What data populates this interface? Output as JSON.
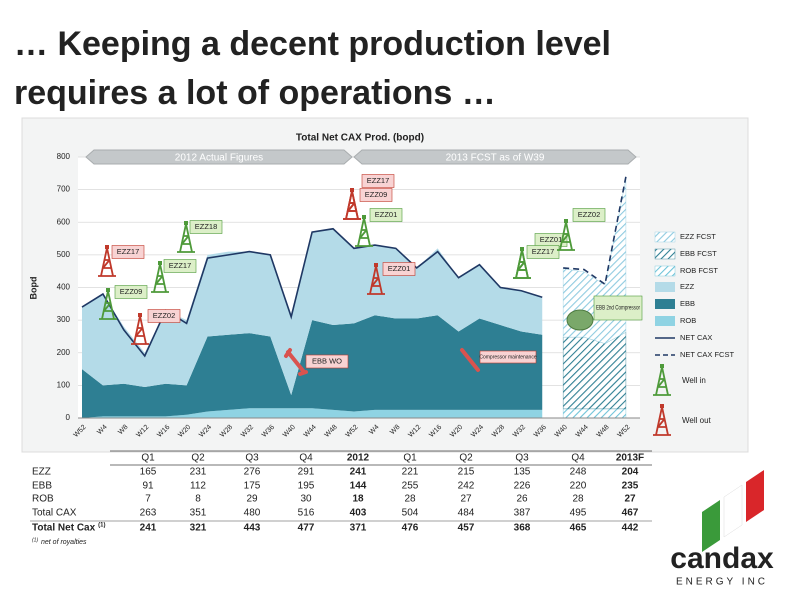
{
  "title_lines": [
    "… Keeping a decent production level",
    "requires a lot of operations …"
  ],
  "chart_data": {
    "type": "area",
    "title": "Total Net CAX Prod. (bopd)",
    "y_label": "Bopd",
    "periods": [
      "2012 Actual Figures",
      "2013 FCST as of W39"
    ],
    "categories": [
      "W52",
      "W4",
      "W8",
      "W12",
      "W16",
      "W20",
      "W24",
      "W28",
      "W32",
      "W36",
      "W40",
      "W44",
      "W48",
      "W52",
      "W4",
      "W8",
      "W12",
      "W16",
      "W20",
      "W24",
      "W28",
      "W32",
      "W36",
      "W40",
      "W44",
      "W48",
      "W52"
    ],
    "ylim": [
      0,
      800
    ],
    "yticks": [
      0,
      100,
      200,
      300,
      400,
      500,
      600,
      700,
      800
    ],
    "grid": true,
    "series": [
      {
        "name": "EZZ FCST",
        "color": "#8fcbe0",
        "style": "hatched-area",
        "values": [
          null,
          null,
          null,
          null,
          null,
          null,
          null,
          null,
          null,
          null,
          null,
          null,
          null,
          null,
          null,
          null,
          null,
          null,
          null,
          null,
          null,
          null,
          null,
          210,
          200,
          180,
          470
        ]
      },
      {
        "name": "EBB FCST",
        "color": "#2e7f93",
        "style": "hatched-area",
        "values": [
          null,
          null,
          null,
          null,
          null,
          null,
          null,
          null,
          null,
          null,
          null,
          null,
          null,
          null,
          null,
          null,
          null,
          null,
          null,
          null,
          null,
          null,
          null,
          220,
          220,
          200,
          235
        ]
      },
      {
        "name": "ROB FCST",
        "color": "#6fc3d8",
        "style": "hatched-area",
        "values": [
          null,
          null,
          null,
          null,
          null,
          null,
          null,
          null,
          null,
          null,
          null,
          null,
          null,
          null,
          null,
          null,
          null,
          null,
          null,
          null,
          null,
          null,
          null,
          28,
          28,
          28,
          28
        ]
      },
      {
        "name": "EZZ",
        "color": "#b4dbe8",
        "style": "area",
        "values": [
          190,
          280,
          175,
          105,
          225,
          200,
          250,
          255,
          250,
          250,
          250,
          270,
          295,
          230,
          215,
          215,
          155,
          205,
          165,
          165,
          115,
          125,
          115,
          null,
          null,
          null,
          null
        ]
      },
      {
        "name": "EBB",
        "color": "#2e7f93",
        "style": "area",
        "values": [
          150,
          95,
          100,
          90,
          100,
          90,
          230,
          230,
          230,
          220,
          40,
          270,
          260,
          270,
          290,
          280,
          280,
          290,
          240,
          280,
          260,
          240,
          230,
          null,
          null,
          null,
          null
        ]
      },
      {
        "name": "ROB",
        "color": "#8fd3e3",
        "style": "area",
        "values": [
          0,
          5,
          5,
          5,
          5,
          10,
          20,
          25,
          30,
          30,
          30,
          30,
          25,
          20,
          25,
          25,
          25,
          25,
          25,
          25,
          25,
          25,
          25,
          null,
          null,
          null,
          null
        ]
      },
      {
        "name": "NET CAX",
        "color": "#1f3864",
        "style": "line",
        "values": [
          340,
          380,
          270,
          190,
          330,
          290,
          490,
          500,
          510,
          500,
          310,
          570,
          580,
          520,
          530,
          520,
          460,
          510,
          430,
          470,
          400,
          390,
          370,
          null,
          null,
          null,
          null
        ]
      },
      {
        "name": "NET CAX FCST",
        "color": "#1f3864",
        "style": "dashed-line",
        "values": [
          null,
          null,
          null,
          null,
          null,
          null,
          null,
          null,
          null,
          null,
          null,
          null,
          null,
          null,
          null,
          null,
          null,
          null,
          null,
          null,
          null,
          null,
          null,
          460,
          455,
          410,
          740
        ]
      }
    ],
    "wells": [
      {
        "label": "EZZ17",
        "status": "out"
      },
      {
        "label": "EZZ09",
        "status": "in"
      },
      {
        "label": "EZZ02",
        "status": "out"
      },
      {
        "label": "EZZ17",
        "status": "in"
      },
      {
        "label": "EZZ18",
        "status": "in"
      },
      {
        "label": "EZZ17",
        "status": "out"
      },
      {
        "label": "EZZ09",
        "status": "out"
      },
      {
        "label": "EZZ01",
        "status": "in"
      },
      {
        "label": "EZZ01",
        "status": "out"
      },
      {
        "label": "EZZ01",
        "status": "in"
      },
      {
        "label": "EZZ17",
        "status": "in"
      },
      {
        "label": "EZZ02",
        "status": "in"
      }
    ],
    "callouts": [
      "EBB WO",
      "Compressor maintenance",
      "EBB 2nd Compressor"
    ],
    "well_legend": [
      {
        "label": "Well in",
        "status": "in"
      },
      {
        "label": "Well out",
        "status": "out"
      }
    ]
  },
  "table": {
    "columns": [
      "Q1",
      "Q2",
      "Q3",
      "Q4",
      "2012",
      "Q1",
      "Q2",
      "Q3",
      "Q4",
      "2013F"
    ],
    "rows": [
      {
        "label": "EZZ",
        "values": [
          165,
          231,
          276,
          291,
          241,
          221,
          215,
          135,
          248,
          204
        ]
      },
      {
        "label": "EBB",
        "values": [
          91,
          112,
          175,
          195,
          144,
          255,
          242,
          226,
          220,
          235
        ]
      },
      {
        "label": "ROB",
        "values": [
          7,
          8,
          29,
          30,
          18,
          28,
          27,
          26,
          28,
          27
        ]
      },
      {
        "label": "Total CAX",
        "values": [
          263,
          351,
          480,
          516,
          403,
          504,
          484,
          387,
          495,
          467
        ]
      },
      {
        "label": "Total Net Cax",
        "note_mark": "(1)",
        "values": [
          241,
          321,
          443,
          477,
          371,
          476,
          457,
          368,
          465,
          442
        ]
      }
    ],
    "footnote_mark": "(1)",
    "footnote": "net of royalties"
  },
  "logo": {
    "name": "candax",
    "tagline": "ENERGY INC"
  }
}
